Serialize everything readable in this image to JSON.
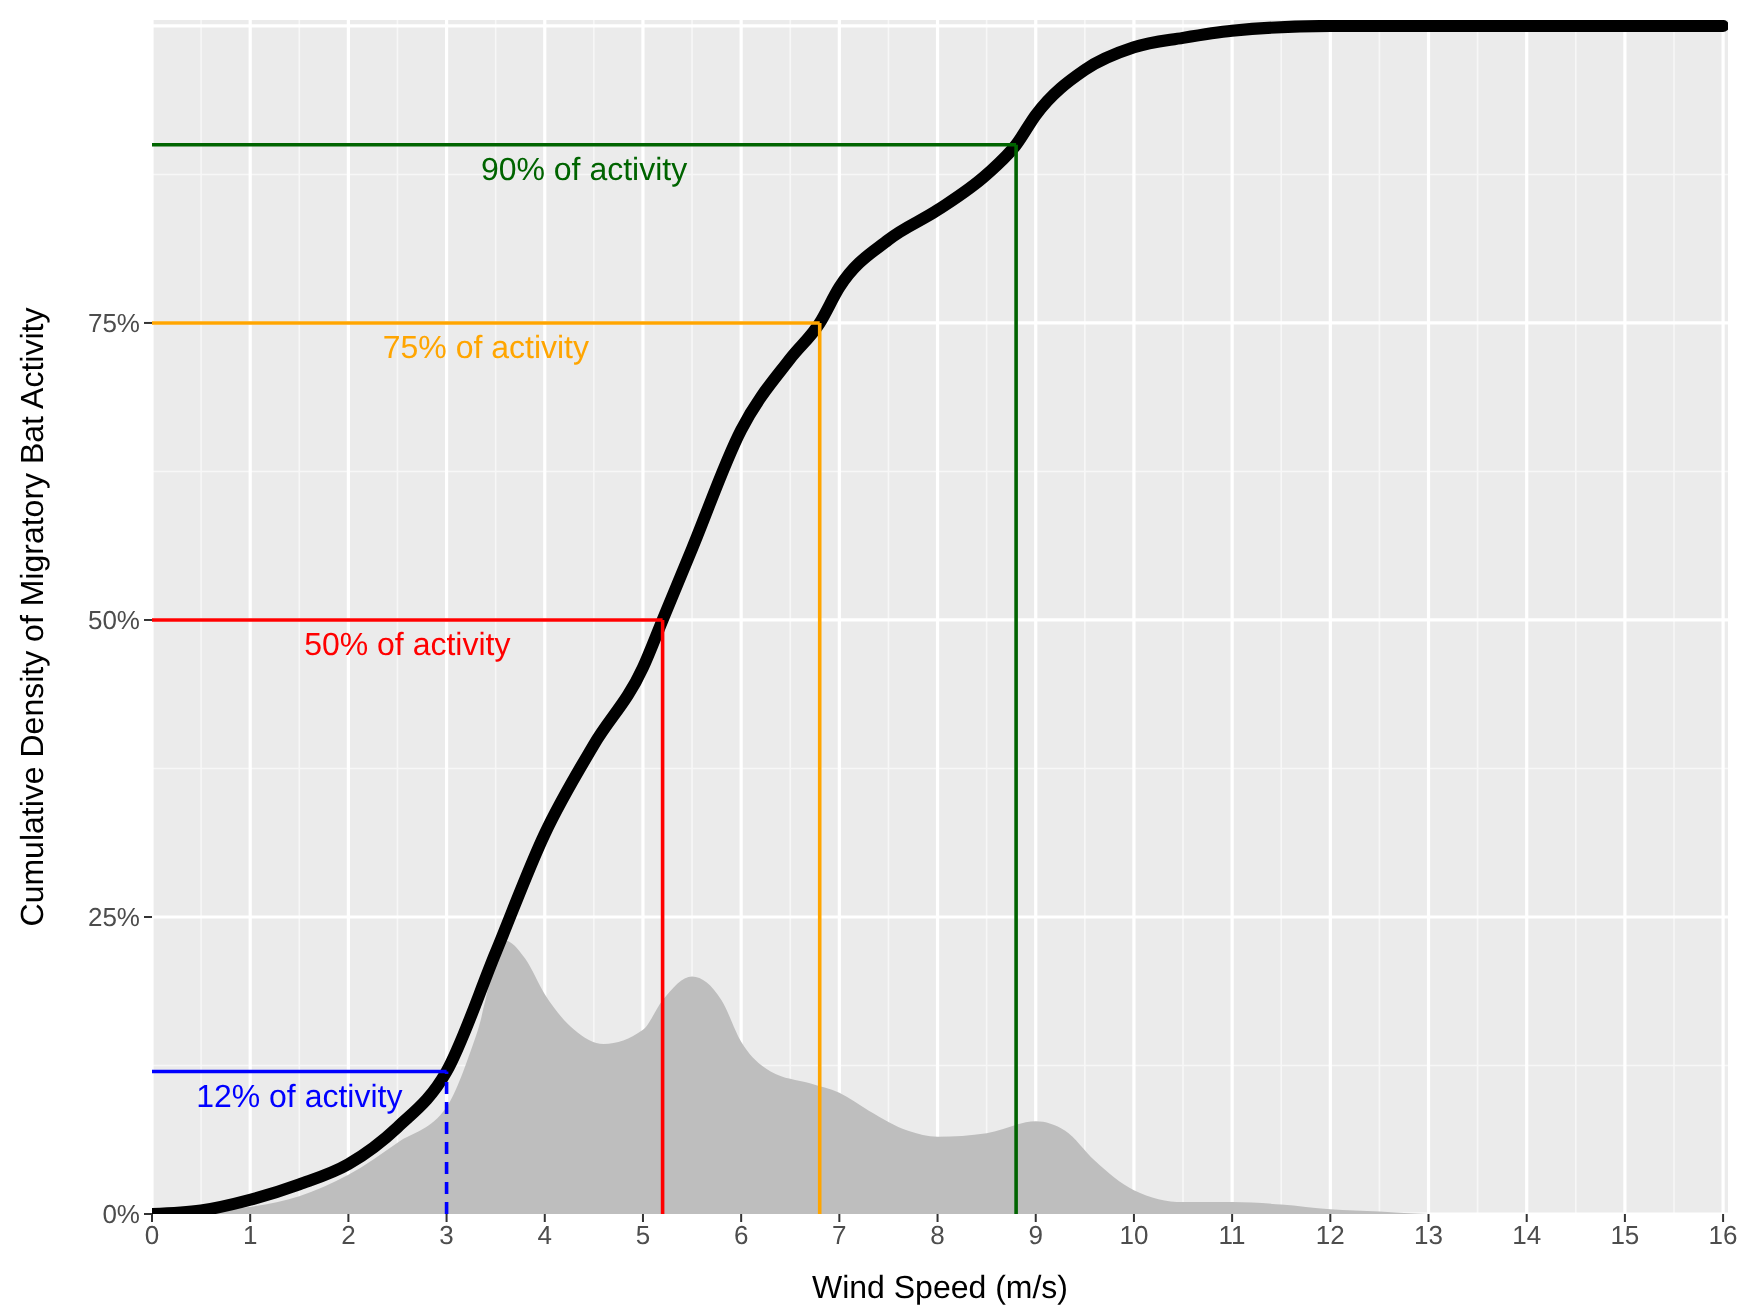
{
  "chart_data": {
    "type": "line",
    "xlabel": "Wind Speed (m/s)",
    "ylabel": "Cumulative Density of Migratory Bat Activity",
    "xlim": [
      0,
      16.05
    ],
    "ylim": [
      0,
      100.5
    ],
    "xticks": [
      0,
      1,
      2,
      3,
      4,
      5,
      6,
      7,
      8,
      9,
      10,
      11,
      12,
      13,
      14,
      15,
      16
    ],
    "yticks": [
      {
        "value": 0,
        "label": "0%"
      },
      {
        "value": 25,
        "label": "25%"
      },
      {
        "value": 50,
        "label": "50%"
      },
      {
        "value": 75,
        "label": "75%"
      }
    ],
    "grid": true,
    "marker": "none",
    "series": [
      {
        "type": "area",
        "color": "#bebebe",
        "x": [
          0,
          0.5,
          1,
          1.5,
          2,
          2.5,
          3,
          3.3,
          3.6,
          3.8,
          4,
          4.3,
          4.6,
          5,
          5.2,
          5.5,
          5.8,
          6,
          6.3,
          6.7,
          7,
          7.3,
          7.7,
          8,
          8.5,
          9,
          9.3,
          9.6,
          10,
          10.5,
          11,
          11.5,
          12,
          12.5,
          13,
          14,
          15,
          16
        ],
        "values": [
          0,
          0.2,
          0.6,
          1.5,
          3.3,
          6,
          9,
          15,
          23,
          21.5,
          18.5,
          15.5,
          14.3,
          15.5,
          18,
          20,
          18,
          14.5,
          12,
          11,
          10.2,
          8.7,
          7,
          6.5,
          6.8,
          7.8,
          7,
          4.5,
          2,
          1,
          1,
          0.8,
          0.4,
          0.2,
          0,
          0,
          0,
          0
        ]
      },
      {
        "color": "#000000",
        "x": [
          0,
          0.5,
          1,
          1.5,
          2,
          2.5,
          3,
          3.5,
          4,
          4.5,
          5,
          5.2,
          5.5,
          6,
          6.5,
          6.8,
          7,
          7.5,
          8,
          8.5,
          8.8,
          9,
          9.5,
          10,
          10.5,
          11,
          12,
          13,
          14,
          15,
          16
        ],
        "values": [
          0,
          0.3,
          1.2,
          2.5,
          4.2,
          7.3,
          12,
          22,
          32,
          39.5,
          46,
          50,
          56,
          66,
          72,
          75,
          78,
          82,
          84.5,
          87.5,
          90,
          92.5,
          96.3,
          98.2,
          99,
          99.6,
          100,
          100,
          100,
          100,
          100
        ]
      },
      {
        "color": "#0000ff",
        "x": [
          0,
          3
        ],
        "values": [
          12,
          12
        ]
      },
      {
        "color": "#0000ff",
        "x": [
          3,
          3
        ],
        "values": [
          0,
          12
        ],
        "line_style": "dashed"
      },
      {
        "color": "#ff0000",
        "x": [
          0,
          5.2
        ],
        "values": [
          50,
          50
        ]
      },
      {
        "color": "#ff0000",
        "x": [
          5.2,
          5.2
        ],
        "values": [
          0,
          50
        ]
      },
      {
        "color": "#ffa500",
        "x": [
          0,
          6.8
        ],
        "values": [
          75,
          75
        ]
      },
      {
        "color": "#ffa500",
        "x": [
          6.8,
          6.8
        ],
        "values": [
          0,
          75
        ]
      },
      {
        "color": "#006400",
        "x": [
          0,
          8.8
        ],
        "values": [
          90,
          90
        ]
      },
      {
        "color": "#006400",
        "x": [
          8.8,
          8.8
        ],
        "values": [
          0,
          90
        ]
      }
    ],
    "annotations": [
      "12% of activity",
      "50% of activity",
      "75% of activity",
      "90% of activity"
    ]
  }
}
